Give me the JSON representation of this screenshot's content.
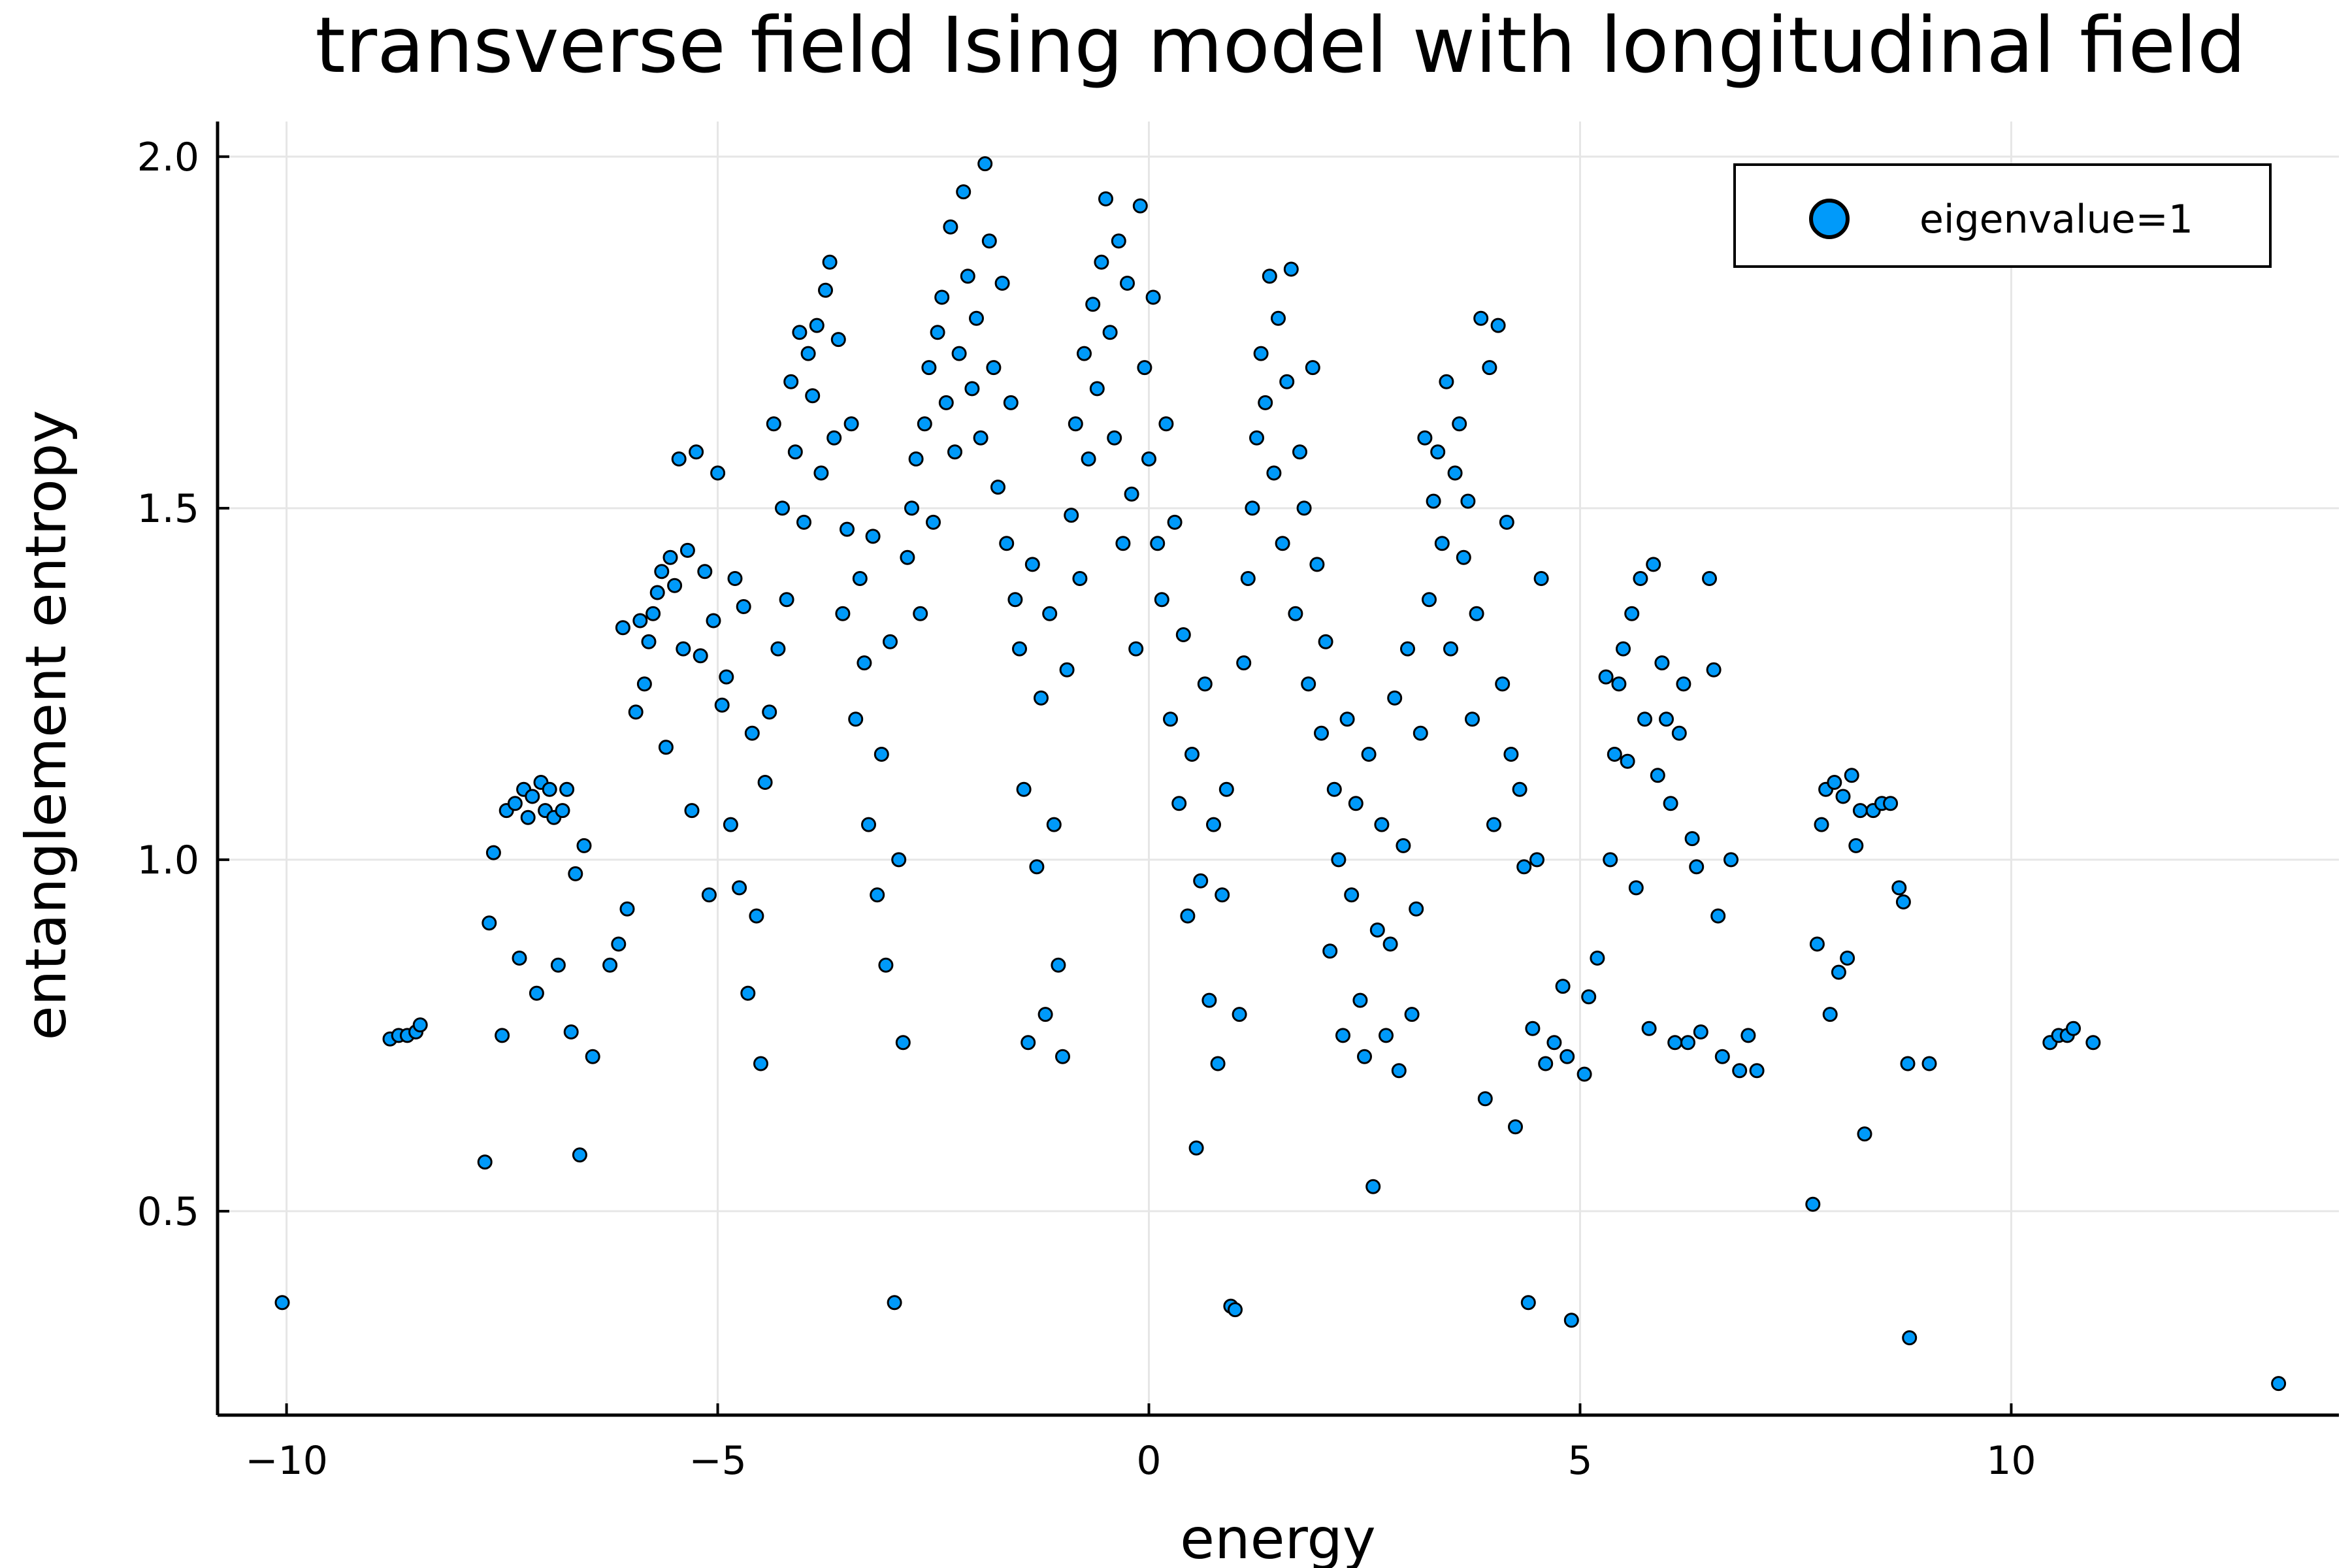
{
  "chart_data": {
    "type": "scatter",
    "title": "transverse field Ising model with longitudinal field",
    "xlabel": "energy",
    "ylabel": "entanglement entropy",
    "xlim": [
      -10.8,
      13.8
    ],
    "ylim": [
      0.21,
      2.05
    ],
    "xticks": [
      -10,
      -5,
      0,
      5,
      10
    ],
    "xtick_labels": [
      "−10",
      "−5",
      "0",
      "5",
      "10"
    ],
    "yticks": [
      0.5,
      1.0,
      1.5,
      2.0
    ],
    "ytick_labels": [
      "0.5",
      "1.0",
      "1.5",
      "2.0"
    ],
    "grid": true,
    "legend_position": "top-right",
    "marker_color": "#009AFA",
    "marker_edge_color": "#000000",
    "series": [
      {
        "name": "eigenvalue=1",
        "points": [
          [
            -10.05,
            0.37
          ],
          [
            -8.8,
            0.745
          ],
          [
            -8.7,
            0.75
          ],
          [
            -8.6,
            0.75
          ],
          [
            -8.5,
            0.755
          ],
          [
            -8.45,
            0.765
          ],
          [
            -7.7,
            0.57
          ],
          [
            -7.65,
            0.91
          ],
          [
            -7.6,
            1.01
          ],
          [
            -7.5,
            0.75
          ],
          [
            -7.45,
            1.07
          ],
          [
            -7.35,
            1.08
          ],
          [
            -7.3,
            0.86
          ],
          [
            -7.25,
            1.1
          ],
          [
            -7.2,
            1.06
          ],
          [
            -7.15,
            1.09
          ],
          [
            -7.1,
            0.81
          ],
          [
            -7.05,
            1.11
          ],
          [
            -7.0,
            1.07
          ],
          [
            -6.95,
            1.1
          ],
          [
            -6.9,
            1.06
          ],
          [
            -6.85,
            0.85
          ],
          [
            -6.8,
            1.07
          ],
          [
            -6.75,
            1.1
          ],
          [
            -6.7,
            0.755
          ],
          [
            -6.65,
            0.98
          ],
          [
            -6.6,
            0.58
          ],
          [
            -6.55,
            1.02
          ],
          [
            -6.45,
            0.72
          ],
          [
            -6.25,
            0.85
          ],
          [
            -6.15,
            0.88
          ],
          [
            -6.1,
            1.33
          ],
          [
            -6.05,
            0.93
          ],
          [
            -5.95,
            1.21
          ],
          [
            -5.9,
            1.34
          ],
          [
            -5.85,
            1.25
          ],
          [
            -5.8,
            1.31
          ],
          [
            -5.75,
            1.35
          ],
          [
            -5.7,
            1.38
          ],
          [
            -5.65,
            1.41
          ],
          [
            -5.6,
            1.16
          ],
          [
            -5.55,
            1.43
          ],
          [
            -5.5,
            1.39
          ],
          [
            -5.45,
            1.57
          ],
          [
            -5.4,
            1.3
          ],
          [
            -5.35,
            1.44
          ],
          [
            -5.3,
            1.07
          ],
          [
            -5.25,
            1.58
          ],
          [
            -5.2,
            1.29
          ],
          [
            -5.15,
            1.41
          ],
          [
            -5.1,
            0.95
          ],
          [
            -5.05,
            1.34
          ],
          [
            -5.0,
            1.55
          ],
          [
            -4.95,
            1.22
          ],
          [
            -4.9,
            1.26
          ],
          [
            -4.85,
            1.05
          ],
          [
            -4.8,
            1.4
          ],
          [
            -4.75,
            0.96
          ],
          [
            -4.7,
            1.36
          ],
          [
            -4.65,
            0.81
          ],
          [
            -4.6,
            1.18
          ],
          [
            -4.55,
            0.92
          ],
          [
            -4.5,
            0.71
          ],
          [
            -4.45,
            1.11
          ],
          [
            -4.4,
            1.21
          ],
          [
            -4.35,
            1.62
          ],
          [
            -4.3,
            1.3
          ],
          [
            -4.25,
            1.5
          ],
          [
            -4.2,
            1.37
          ],
          [
            -4.15,
            1.68
          ],
          [
            -4.1,
            1.58
          ],
          [
            -4.05,
            1.75
          ],
          [
            -4.0,
            1.48
          ],
          [
            -3.95,
            1.72
          ],
          [
            -3.9,
            1.66
          ],
          [
            -3.85,
            1.76
          ],
          [
            -3.8,
            1.55
          ],
          [
            -3.75,
            1.81
          ],
          [
            -3.7,
            1.85
          ],
          [
            -3.65,
            1.6
          ],
          [
            -3.6,
            1.74
          ],
          [
            -3.55,
            1.35
          ],
          [
            -3.5,
            1.47
          ],
          [
            -3.45,
            1.62
          ],
          [
            -3.4,
            1.2
          ],
          [
            -3.35,
            1.4
          ],
          [
            -3.3,
            1.28
          ],
          [
            -3.25,
            1.05
          ],
          [
            -3.2,
            1.46
          ],
          [
            -3.15,
            0.95
          ],
          [
            -3.1,
            1.15
          ],
          [
            -3.05,
            0.85
          ],
          [
            -3.0,
            1.31
          ],
          [
            -2.95,
            0.37
          ],
          [
            -2.9,
            1.0
          ],
          [
            -2.85,
            0.74
          ],
          [
            -2.8,
            1.43
          ],
          [
            -2.75,
            1.5
          ],
          [
            -2.7,
            1.57
          ],
          [
            -2.65,
            1.35
          ],
          [
            -2.6,
            1.62
          ],
          [
            -2.55,
            1.7
          ],
          [
            -2.5,
            1.48
          ],
          [
            -2.45,
            1.75
          ],
          [
            -2.4,
            1.8
          ],
          [
            -2.35,
            1.65
          ],
          [
            -2.3,
            1.9
          ],
          [
            -2.25,
            1.58
          ],
          [
            -2.2,
            1.72
          ],
          [
            -2.15,
            1.95
          ],
          [
            -2.1,
            1.83
          ],
          [
            -2.05,
            1.67
          ],
          [
            -2.0,
            1.77
          ],
          [
            -1.95,
            1.6
          ],
          [
            -1.9,
            1.99
          ],
          [
            -1.85,
            1.88
          ],
          [
            -1.8,
            1.7
          ],
          [
            -1.75,
            1.53
          ],
          [
            -1.7,
            1.82
          ],
          [
            -1.65,
            1.45
          ],
          [
            -1.6,
            1.65
          ],
          [
            -1.55,
            1.37
          ],
          [
            -1.5,
            1.3
          ],
          [
            -1.45,
            1.1
          ],
          [
            -1.4,
            0.74
          ],
          [
            -1.35,
            1.42
          ],
          [
            -1.3,
            0.99
          ],
          [
            -1.25,
            1.23
          ],
          [
            -1.2,
            0.78
          ],
          [
            -1.15,
            1.35
          ],
          [
            -1.1,
            1.05
          ],
          [
            -1.05,
            0.85
          ],
          [
            -1.0,
            0.72
          ],
          [
            -0.95,
            1.27
          ],
          [
            -0.9,
            1.49
          ],
          [
            -0.85,
            1.62
          ],
          [
            -0.8,
            1.4
          ],
          [
            -0.75,
            1.72
          ],
          [
            -0.7,
            1.57
          ],
          [
            -0.65,
            1.79
          ],
          [
            -0.6,
            1.67
          ],
          [
            -0.55,
            1.85
          ],
          [
            -0.5,
            1.94
          ],
          [
            -0.45,
            1.75
          ],
          [
            -0.4,
            1.6
          ],
          [
            -0.35,
            1.88
          ],
          [
            -0.3,
            1.45
          ],
          [
            -0.25,
            1.82
          ],
          [
            -0.2,
            1.52
          ],
          [
            -0.15,
            1.3
          ],
          [
            -0.1,
            1.93
          ],
          [
            -0.05,
            1.7
          ],
          [
            0.0,
            1.57
          ],
          [
            0.05,
            1.8
          ],
          [
            0.1,
            1.45
          ],
          [
            0.15,
            1.37
          ],
          [
            0.2,
            1.62
          ],
          [
            0.25,
            1.2
          ],
          [
            0.3,
            1.48
          ],
          [
            0.35,
            1.08
          ],
          [
            0.4,
            1.32
          ],
          [
            0.45,
            0.92
          ],
          [
            0.5,
            1.15
          ],
          [
            0.55,
            0.59
          ],
          [
            0.6,
            0.97
          ],
          [
            0.65,
            1.25
          ],
          [
            0.7,
            0.8
          ],
          [
            0.75,
            1.05
          ],
          [
            0.8,
            0.71
          ],
          [
            0.85,
            0.95
          ],
          [
            0.9,
            1.1
          ],
          [
            0.95,
            0.365
          ],
          [
            1.0,
            0.36
          ],
          [
            1.05,
            0.78
          ],
          [
            1.1,
            1.28
          ],
          [
            1.15,
            1.4
          ],
          [
            1.2,
            1.5
          ],
          [
            1.25,
            1.6
          ],
          [
            1.3,
            1.72
          ],
          [
            1.35,
            1.65
          ],
          [
            1.4,
            1.83
          ],
          [
            1.45,
            1.55
          ],
          [
            1.5,
            1.77
          ],
          [
            1.55,
            1.45
          ],
          [
            1.6,
            1.68
          ],
          [
            1.65,
            1.84
          ],
          [
            1.7,
            1.35
          ],
          [
            1.75,
            1.58
          ],
          [
            1.8,
            1.5
          ],
          [
            1.85,
            1.25
          ],
          [
            1.9,
            1.7
          ],
          [
            1.95,
            1.42
          ],
          [
            2.0,
            1.18
          ],
          [
            2.05,
            1.31
          ],
          [
            2.1,
            0.87
          ],
          [
            2.15,
            1.1
          ],
          [
            2.2,
            1.0
          ],
          [
            2.25,
            0.75
          ],
          [
            2.3,
            1.2
          ],
          [
            2.35,
            0.95
          ],
          [
            2.4,
            1.08
          ],
          [
            2.45,
            0.8
          ],
          [
            2.5,
            0.72
          ],
          [
            2.55,
            1.15
          ],
          [
            2.6,
            0.535
          ],
          [
            2.65,
            0.9
          ],
          [
            2.7,
            1.05
          ],
          [
            2.75,
            0.75
          ],
          [
            2.8,
            0.88
          ],
          [
            2.85,
            1.23
          ],
          [
            2.9,
            0.7
          ],
          [
            2.95,
            1.02
          ],
          [
            3.0,
            1.3
          ],
          [
            3.05,
            0.78
          ],
          [
            3.1,
            0.93
          ],
          [
            3.15,
            1.18
          ],
          [
            3.2,
            1.6
          ],
          [
            3.25,
            1.37
          ],
          [
            3.3,
            1.51
          ],
          [
            3.35,
            1.58
          ],
          [
            3.4,
            1.45
          ],
          [
            3.45,
            1.68
          ],
          [
            3.5,
            1.3
          ],
          [
            3.55,
            1.55
          ],
          [
            3.6,
            1.62
          ],
          [
            3.65,
            1.43
          ],
          [
            3.7,
            1.51
          ],
          [
            3.75,
            1.2
          ],
          [
            3.8,
            1.35
          ],
          [
            3.85,
            1.77
          ],
          [
            3.9,
            0.66
          ],
          [
            3.95,
            1.7
          ],
          [
            4.0,
            1.05
          ],
          [
            4.05,
            1.76
          ],
          [
            4.1,
            1.25
          ],
          [
            4.15,
            1.48
          ],
          [
            4.2,
            1.15
          ],
          [
            4.25,
            0.62
          ],
          [
            4.3,
            1.1
          ],
          [
            4.35,
            0.99
          ],
          [
            4.4,
            0.37
          ],
          [
            4.45,
            0.76
          ],
          [
            4.5,
            1.0
          ],
          [
            4.55,
            1.4
          ],
          [
            4.6,
            0.71
          ],
          [
            4.7,
            0.74
          ],
          [
            4.8,
            0.82
          ],
          [
            4.85,
            0.72
          ],
          [
            4.9,
            0.345
          ],
          [
            5.05,
            0.695
          ],
          [
            5.1,
            0.805
          ],
          [
            5.2,
            0.86
          ],
          [
            5.3,
            1.26
          ],
          [
            5.35,
            1.0
          ],
          [
            5.4,
            1.15
          ],
          [
            5.45,
            1.25
          ],
          [
            5.5,
            1.3
          ],
          [
            5.55,
            1.14
          ],
          [
            5.6,
            1.35
          ],
          [
            5.65,
            0.96
          ],
          [
            5.7,
            1.4
          ],
          [
            5.75,
            1.2
          ],
          [
            5.8,
            0.76
          ],
          [
            5.85,
            1.42
          ],
          [
            5.9,
            1.12
          ],
          [
            5.95,
            1.28
          ],
          [
            6.0,
            1.2
          ],
          [
            6.05,
            1.08
          ],
          [
            6.1,
            0.74
          ],
          [
            6.15,
            1.18
          ],
          [
            6.2,
            1.25
          ],
          [
            6.25,
            0.74
          ],
          [
            6.3,
            1.03
          ],
          [
            6.35,
            0.99
          ],
          [
            6.4,
            0.755
          ],
          [
            6.5,
            1.4
          ],
          [
            6.55,
            1.27
          ],
          [
            6.6,
            0.92
          ],
          [
            6.65,
            0.72
          ],
          [
            6.75,
            1.0
          ],
          [
            6.85,
            0.7
          ],
          [
            6.95,
            0.75
          ],
          [
            7.05,
            0.7
          ],
          [
            7.7,
            0.51
          ],
          [
            7.75,
            0.88
          ],
          [
            7.8,
            1.05
          ],
          [
            7.85,
            1.1
          ],
          [
            7.9,
            0.78
          ],
          [
            7.95,
            1.11
          ],
          [
            8.0,
            0.84
          ],
          [
            8.05,
            1.09
          ],
          [
            8.1,
            0.86
          ],
          [
            8.15,
            1.12
          ],
          [
            8.2,
            1.02
          ],
          [
            8.25,
            1.07
          ],
          [
            8.3,
            0.61
          ],
          [
            8.4,
            1.07
          ],
          [
            8.5,
            1.08
          ],
          [
            8.6,
            1.08
          ],
          [
            8.7,
            0.96
          ],
          [
            8.75,
            0.94
          ],
          [
            8.8,
            0.71
          ],
          [
            8.82,
            0.32
          ],
          [
            9.05,
            0.71
          ],
          [
            10.45,
            0.74
          ],
          [
            10.55,
            0.75
          ],
          [
            10.65,
            0.75
          ],
          [
            10.72,
            0.76
          ],
          [
            10.95,
            0.74
          ],
          [
            13.1,
            0.255
          ]
        ]
      }
    ]
  }
}
